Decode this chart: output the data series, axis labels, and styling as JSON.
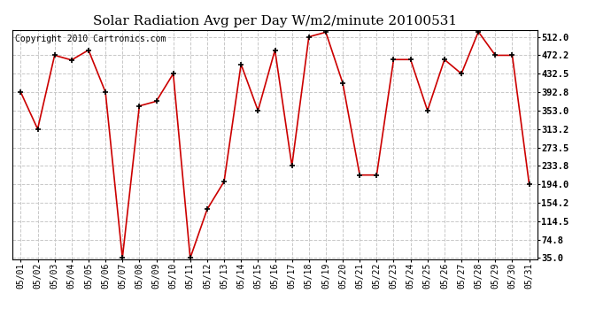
{
  "title": "Solar Radiation Avg per Day W/m2/minute 20100531",
  "copyright": "Copyright 2010 Cartronics.com",
  "dates": [
    "05/01",
    "05/02",
    "05/03",
    "05/04",
    "05/05",
    "05/06",
    "05/07",
    "05/08",
    "05/09",
    "05/10",
    "05/11",
    "05/12",
    "05/13",
    "05/14",
    "05/15",
    "05/16",
    "05/17",
    "05/18",
    "05/19",
    "05/20",
    "05/21",
    "05/22",
    "05/23",
    "05/24",
    "05/25",
    "05/26",
    "05/27",
    "05/28",
    "05/29",
    "05/30",
    "05/31"
  ],
  "values": [
    392.8,
    313.2,
    472.2,
    462.0,
    483.5,
    392.8,
    35.0,
    363.0,
    373.0,
    432.5,
    35.0,
    140.0,
    200.0,
    452.8,
    353.0,
    483.5,
    233.8,
    512.0,
    522.0,
    412.0,
    214.0,
    214.0,
    463.0,
    463.0,
    353.0,
    463.0,
    432.5,
    523.0,
    472.2,
    472.2,
    194.0
  ],
  "yticks": [
    35.0,
    74.8,
    114.5,
    154.2,
    194.0,
    233.8,
    273.5,
    313.2,
    353.0,
    392.8,
    432.5,
    472.2,
    512.0
  ],
  "line_color": "#cc0000",
  "marker_color": "#000000",
  "bg_color": "#ffffff",
  "grid_color": "#c8c8c8",
  "title_fontsize": 11,
  "copyright_fontsize": 7,
  "tick_fontsize": 7,
  "ytick_fontsize": 7.5
}
